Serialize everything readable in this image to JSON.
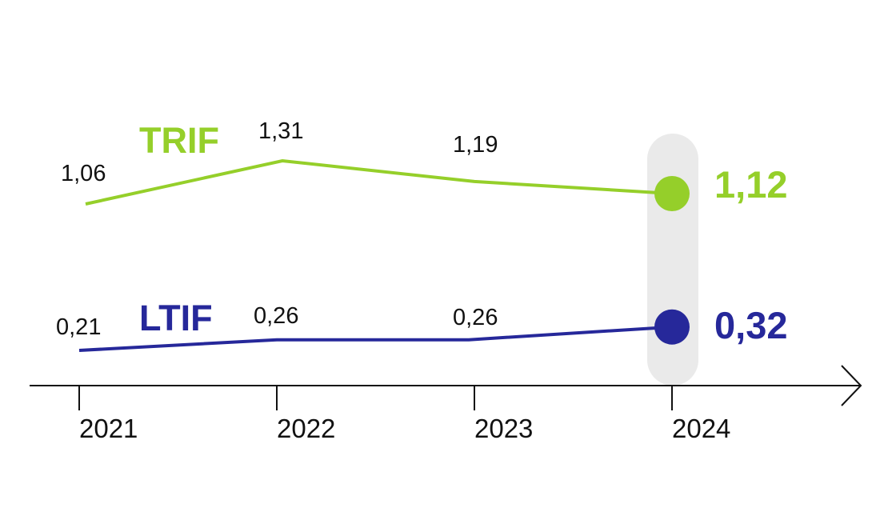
{
  "chart_data": {
    "type": "line",
    "categories": [
      "2021",
      "2022",
      "2023",
      "2024"
    ],
    "series": [
      {
        "name": "TRIF",
        "color": "#95cf2a",
        "values": [
          1.06,
          1.31,
          1.19,
          1.12
        ],
        "labels": [
          "1,06",
          "1,31",
          "1,19",
          "1,12"
        ]
      },
      {
        "name": "LTIF",
        "color": "#26289a",
        "values": [
          0.21,
          0.26,
          0.26,
          0.32
        ],
        "labels": [
          "0,21",
          "0,26",
          "0,26",
          "0,32"
        ]
      }
    ],
    "highlight": {
      "category": "2024",
      "color": "#eaeaea"
    },
    "axis_color": "#111111",
    "grid": false,
    "legend": "inline-labels"
  }
}
